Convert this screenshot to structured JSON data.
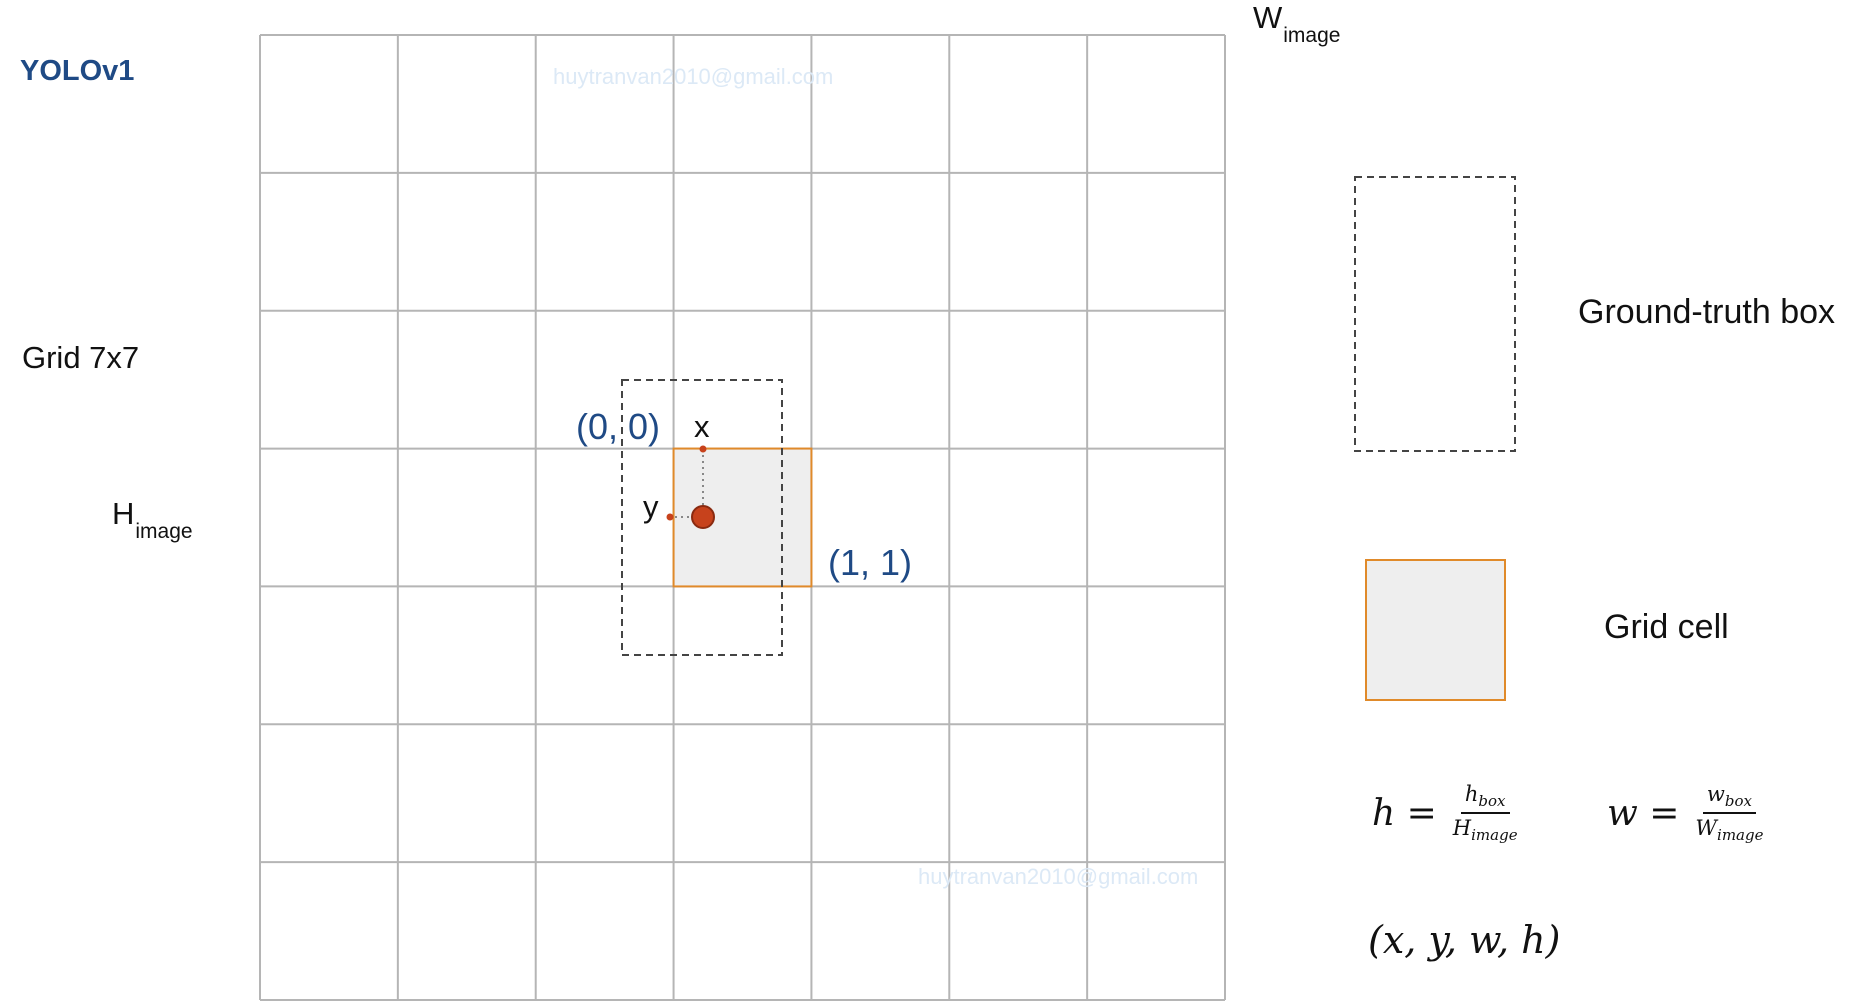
{
  "title": "YOLOv1",
  "grid_label": "Grid 7x7",
  "h_label": {
    "main": "H",
    "sub": "image"
  },
  "w_label": {
    "main": "W",
    "sub": "image"
  },
  "grid": {
    "rows": 7,
    "cols": 7,
    "line_color": "#b5b5b5"
  },
  "highlighted_cell": {
    "row": 3,
    "col": 3,
    "fill": "#eeeeee",
    "border": "#e08a2a"
  },
  "ground_truth_box": {
    "border": "#444444"
  },
  "center_point": {
    "fill": "#c7421c"
  },
  "annotations": {
    "top_left_coord": "(0, 0)",
    "bottom_right_coord": "(1, 1)",
    "x_label": "x",
    "y_label": "y",
    "coord_color": "#1f4a85"
  },
  "legend": {
    "ground_truth_label": "Ground-truth box",
    "grid_cell_label": "Grid cell"
  },
  "formulas": {
    "h": {
      "lhs": "h =",
      "num": "h",
      "num_sub": "box",
      "den": "H",
      "den_sub": "image"
    },
    "w": {
      "lhs": "w =",
      "num": "w",
      "num_sub": "box",
      "den": "W",
      "den_sub": "image"
    },
    "tuple": "(x, y, w, h)"
  },
  "watermark": "huytranvan2010@gmail.com"
}
